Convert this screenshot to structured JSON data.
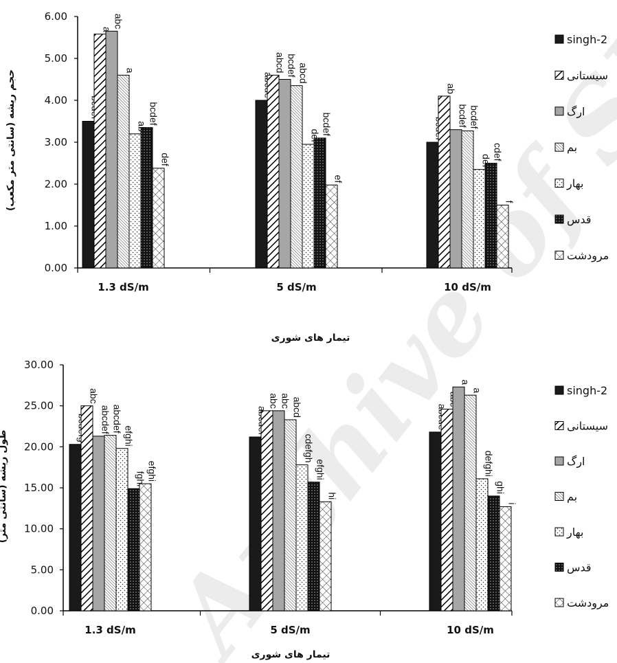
{
  "watermark": "Archive of SID",
  "legend_entries": [
    "singh-2",
    "سیستانی",
    "ارگ",
    "بم",
    "بهار",
    "قدس",
    "مرودشت"
  ],
  "chart_data": [
    {
      "type": "bar",
      "xlabel": "تیمار های شوری",
      "ylabel": "حجم ریشه (سانتی متر مکعب)",
      "categories": [
        "1.3 dS/m",
        "5 dS/m",
        "10 dS/m"
      ],
      "ylim": [
        0,
        6
      ],
      "yticks": [
        "0.00",
        "1.00",
        "2.00",
        "3.00",
        "4.00",
        "5.00",
        "6.00"
      ],
      "series": [
        {
          "name": "singh-2",
          "values": [
            3.5,
            4.0,
            3.0
          ],
          "labels": [
            "bcdef",
            "abcde",
            "bcdef"
          ]
        },
        {
          "name": "سیستانی",
          "values": [
            5.58,
            4.6,
            4.1
          ],
          "labels": [
            "a",
            "abcd",
            "ab"
          ]
        },
        {
          "name": "ارگ",
          "values": [
            5.65,
            4.5,
            3.3
          ],
          "labels": [
            "abc",
            "bcdef",
            "bcdef"
          ]
        },
        {
          "name": "بم",
          "values": [
            4.6,
            4.35,
            3.27
          ],
          "labels": [
            "a",
            "abcd",
            "bcdef"
          ]
        },
        {
          "name": "بهار",
          "values": [
            3.2,
            2.95,
            2.35
          ],
          "labels": [
            "ab",
            "def",
            "def"
          ]
        },
        {
          "name": "قدس",
          "values": [
            3.35,
            3.1,
            2.5
          ],
          "labels": [
            "bcdef",
            "bcdef",
            "cdef"
          ]
        },
        {
          "name": "مرودشت",
          "values": [
            2.38,
            1.98,
            1.5
          ],
          "labels": [
            "def",
            "ef",
            "f"
          ]
        }
      ]
    },
    {
      "type": "bar",
      "xlabel": "تیمار های شوری",
      "ylabel": "طول ریشه (سانتی متر)",
      "categories": [
        "1.3 dS/m",
        "5 dS/m",
        "10 dS/m"
      ],
      "ylim": [
        0,
        30
      ],
      "yticks": [
        "0.00",
        "5.00",
        "10.00",
        "15.00",
        "20.00",
        "25.00",
        "30.00"
      ],
      "series": [
        {
          "name": "singh-2",
          "values": [
            20.3,
            21.2,
            21.8
          ],
          "labels": [
            "bcdefg",
            "abcdef",
            "abcde"
          ]
        },
        {
          "name": "سیستانی",
          "values": [
            25.0,
            24.4,
            24.6
          ],
          "labels": [
            "abc",
            "abc",
            "abc"
          ]
        },
        {
          "name": "ارگ",
          "values": [
            21.3,
            24.4,
            27.3
          ],
          "labels": [
            "abcdef",
            "abc",
            "a"
          ]
        },
        {
          "name": "بم",
          "values": [
            21.4,
            23.3,
            26.3
          ],
          "labels": [
            "abcdef",
            "abcd",
            "a"
          ]
        },
        {
          "name": "بهار",
          "values": [
            19.8,
            17.8,
            16.1
          ],
          "labels": [
            "efghi",
            "cdefgh",
            "defghi"
          ]
        },
        {
          "name": "قدس",
          "values": [
            14.9,
            15.7,
            14.0
          ],
          "labels": [
            "fghi",
            "efghi",
            "ghi"
          ]
        },
        {
          "name": "مرودشت",
          "values": [
            15.5,
            13.3,
            12.7
          ],
          "labels": [
            "efghi",
            "hi",
            "i"
          ]
        }
      ]
    }
  ]
}
